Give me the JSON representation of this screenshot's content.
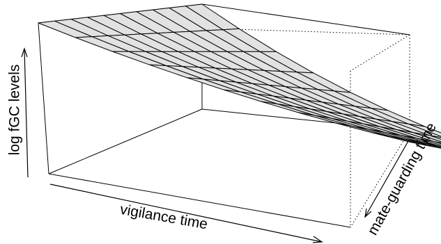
{
  "chart_data": {
    "type": "surface",
    "title": "",
    "xlabel": "vigilance time",
    "ylabel": "mate-guarding time",
    "zlabel": "log fGC levels",
    "tick_labels_shown": false,
    "grid": false,
    "surface": {
      "rows": 10,
      "cols": 10,
      "corner_heights": {
        "low_vigilance_low_mateguarding": 1.0,
        "high_vigilance_low_mateguarding": 0.37,
        "low_vigilance_high_mateguarding": 1.0,
        "high_vigilance_high_mateguarding": 0.07
      },
      "curvature": 0.55
    },
    "colors": {
      "surface_fill": "#e2e2e2",
      "lines": "#000000"
    }
  }
}
